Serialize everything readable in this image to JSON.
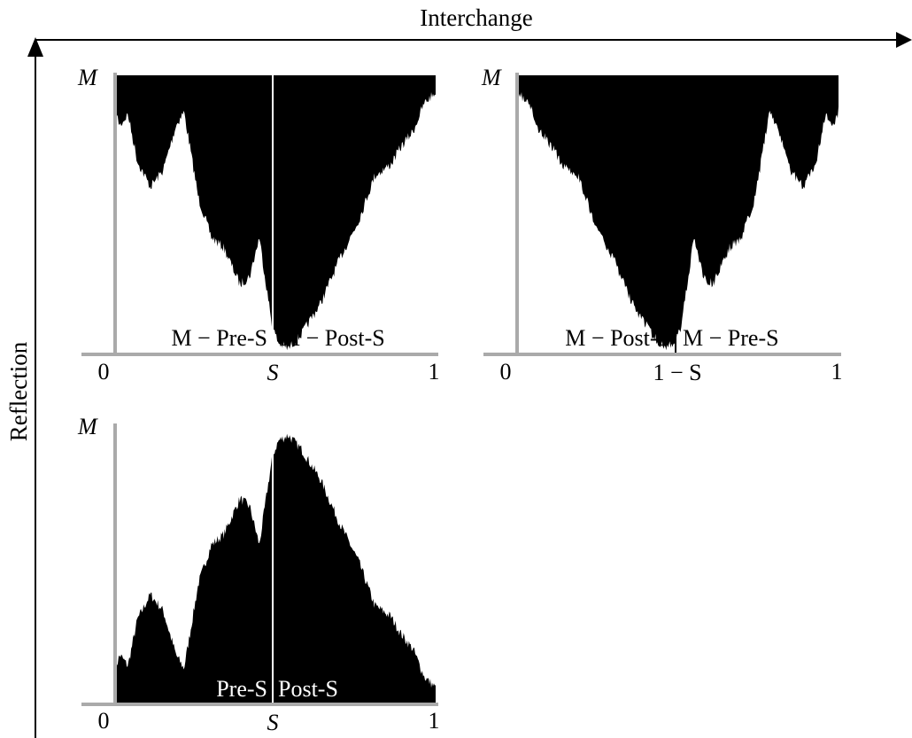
{
  "figure": {
    "horizontal_arrow_label": "Interchange",
    "vertical_arrow_label": "Reflection"
  },
  "panels": [
    {
      "id": "top-left",
      "y_top_label": "M",
      "x_left_label": "0",
      "x_mid_label": "S",
      "x_right_label": "1",
      "left_region_label": "M − Pre-S",
      "right_region_label": "M − Post-S"
    },
    {
      "id": "top-right",
      "y_top_label": "M",
      "x_left_label": "0",
      "x_mid_label": "1 − S",
      "x_right_label": "1",
      "left_region_label": "M − Post-S",
      "right_region_label": "M − Pre-S"
    },
    {
      "id": "bottom-left",
      "y_top_label": "M",
      "x_left_label": "0",
      "x_mid_label": "S",
      "x_right_label": "1",
      "left_region_label": "Pre-S",
      "right_region_label": "Post-S"
    }
  ],
  "colors": {
    "fill": "#000000",
    "axis": "#aaaaaa",
    "divider_on_fill": "#ffffff",
    "divider_on_white": "#000000",
    "arrow": "#000000"
  }
}
